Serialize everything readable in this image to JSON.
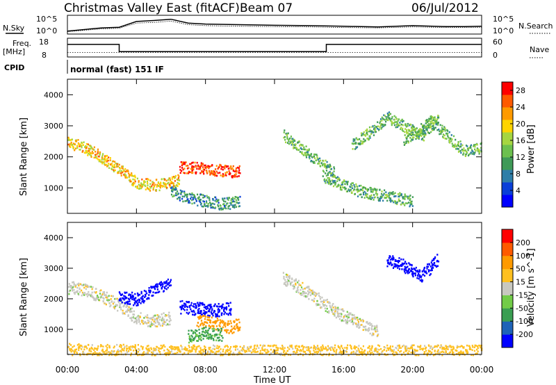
{
  "header": {
    "title": "Christmas Valley East (fitACF)",
    "beam": "Beam 07",
    "date": "06/Jul/2012"
  },
  "left_labels": {
    "nsky": "N.Sky",
    "freq_line1": "Freq.",
    "freq_line2": "[MHz]",
    "cpid": "CPID"
  },
  "right_labels": {
    "nsearch": "N.Search",
    "nave": "Nave"
  },
  "noise_axis": {
    "top": "10^5",
    "bottom": "10^0"
  },
  "freq_axis": {
    "left_top": "18",
    "left_bottom": "8",
    "right_top": "60",
    "right_bottom": "0"
  },
  "cpid_text": "normal (fast) 151 IF",
  "xlabel": "Time UT",
  "ylabel": "Slant Range [km]",
  "colors": {
    "power": [
      "#0000ff",
      "#0a3fd8",
      "#2e7ea8",
      "#3f9a58",
      "#6cc04e",
      "#a6d640",
      "#ffd400",
      "#ff9a00",
      "#ff5a00",
      "#ff0000"
    ],
    "velocity": [
      "#0000ff",
      "#1e63b8",
      "#3a9e52",
      "#72cc48",
      "#c8c8c0",
      "#ffc020",
      "#ff9a00",
      "#ff5a00",
      "#ff0000"
    ]
  },
  "chart_data": [
    {
      "type": "line",
      "name": "noise-panel",
      "ylabel": "N.Sky",
      "y2label": "N.Search",
      "yticks": [
        "10^0",
        "10^5"
      ],
      "x": [
        "00:00",
        "02:00",
        "03:00",
        "04:00",
        "05:00",
        "06:00",
        "07:00",
        "08:00",
        "10:00",
        "12:00",
        "14:00",
        "16:00",
        "18:00",
        "20:00",
        "22:00",
        "23:00",
        "24:00"
      ],
      "series": [
        {
          "name": "N.Sky",
          "values": [
            0.5,
            1.5,
            1.7,
            3.5,
            3.8,
            4.2,
            3.0,
            2.7,
            2.5,
            2.3,
            2.2,
            2.0,
            1.8,
            2.2,
            1.9,
            1.9,
            2.0
          ]
        },
        {
          "name": "N.Search",
          "values": [
            0.3,
            1.2,
            1.4,
            3.0,
            3.2,
            3.6,
            2.5,
            2.2,
            2.0,
            1.9,
            1.8,
            1.6,
            1.5,
            1.8,
            1.6,
            1.6,
            1.7
          ]
        }
      ]
    },
    {
      "type": "line",
      "name": "frequency-panel",
      "ylabel": "Freq. [MHz]",
      "y2label": "Nave",
      "ylim": [
        8,
        18
      ],
      "y2lim": [
        0,
        60
      ],
      "x": [
        "00:00",
        "03:00",
        "03:00",
        "15:00",
        "15:00",
        "24:00"
      ],
      "series": [
        {
          "name": "Freq.",
          "values": [
            15,
            15,
            10.5,
            10.5,
            15,
            15
          ]
        },
        {
          "name": "Nave",
          "values": [
            12,
            12,
            12,
            12,
            12,
            12
          ]
        }
      ]
    },
    {
      "type": "heatmap",
      "name": "power-panel",
      "xlabel": "Time UT",
      "ylabel": "Slant Range [km]",
      "colorbar_label": "Power [dB]",
      "ylim": [
        180,
        4500
      ],
      "yticks": [
        1000,
        2000,
        3000,
        4000
      ],
      "xlim": [
        "00:00",
        "24:00"
      ],
      "xticks": [
        "00:00",
        "04:00",
        "08:00",
        "12:00",
        "16:00",
        "20:00",
        "00:00"
      ],
      "colorbar_ticks": [
        4,
        8,
        12,
        16,
        20,
        24,
        28
      ],
      "colorbar_range": [
        0,
        30
      ],
      "echo_tracks": [
        {
          "t": [
            0.0,
            1.0,
            2.0,
            3.0,
            4.0,
            5.0,
            6.0,
            6.5
          ],
          "range": [
            2500,
            2300,
            2000,
            1600,
            1200,
            1100,
            1200,
            1300
          ],
          "power": 20
        },
        {
          "t": [
            6.5,
            7.5,
            8.5,
            9.5,
            10.0
          ],
          "range": [
            1700,
            1650,
            1600,
            1550,
            1600
          ],
          "power": 27
        },
        {
          "t": [
            6.0,
            7.0,
            8.0,
            9.0,
            10.0
          ],
          "range": [
            900,
            700,
            600,
            500,
            600
          ],
          "power": 9
        },
        {
          "t": [
            12.5,
            13.5,
            14.5,
            15.5
          ],
          "range": [
            2700,
            2300,
            1900,
            1500
          ],
          "power": 13
        },
        {
          "t": [
            14.8,
            16.0,
            17.0,
            18.0,
            19.0,
            20.0
          ],
          "range": [
            1400,
            1100,
            900,
            800,
            700,
            600
          ],
          "power": 12
        },
        {
          "t": [
            16.5,
            17.5,
            18.5,
            19.5,
            20.5,
            21.5
          ],
          "range": [
            2400,
            2800,
            3300,
            3000,
            2700,
            3300
          ],
          "power": 13
        },
        {
          "t": [
            19.5,
            20.5,
            21.0,
            22.0,
            23.0,
            24.0
          ],
          "range": [
            2600,
            2900,
            3200,
            2700,
            2200,
            2300
          ],
          "power": 13
        }
      ]
    },
    {
      "type": "heatmap",
      "name": "velocity-panel",
      "xlabel": "Time UT",
      "ylabel": "Slant Range [km]",
      "colorbar_label": "Velocity [m s^-1]",
      "ylim": [
        180,
        4500
      ],
      "yticks": [
        1000,
        2000,
        3000,
        4000
      ],
      "xlim": [
        "00:00",
        "24:00"
      ],
      "xticks": [
        "00:00",
        "04:00",
        "08:00",
        "12:00",
        "16:00",
        "20:00",
        "00:00"
      ],
      "colorbar_ticks": [
        200,
        100,
        50,
        15,
        -15,
        -50,
        -100,
        -200
      ],
      "echo_tracks": [
        {
          "t": [
            0.0,
            1.0,
            2.0,
            3.0,
            4.0,
            5.0,
            6.0
          ],
          "range": [
            2400,
            2300,
            2100,
            1800,
            1400,
            1300,
            1400
          ],
          "velocity": 0
        },
        {
          "t": [
            3.0,
            4.0,
            5.0,
            6.0
          ],
          "range": [
            2100,
            2000,
            2300,
            2600
          ],
          "velocity": 200
        },
        {
          "t": [
            6.5,
            7.5,
            8.5,
            9.5
          ],
          "range": [
            1750,
            1700,
            1650,
            1700
          ],
          "velocity": 200
        },
        {
          "t": [
            7.5,
            8.5,
            9.5,
            10.0
          ],
          "range": [
            1300,
            1200,
            1100,
            1200
          ],
          "velocity": -80
        },
        {
          "t": [
            7.0,
            8.0,
            9.0
          ],
          "range": [
            800,
            900,
            850
          ],
          "velocity": 40
        },
        {
          "t": [
            12.5,
            14.0,
            15.5,
            17.0,
            18.0
          ],
          "range": [
            2700,
            2200,
            1600,
            1200,
            900
          ],
          "velocity": 0
        },
        {
          "t": [
            18.5,
            19.5,
            20.5,
            21.5
          ],
          "range": [
            3300,
            3100,
            2800,
            3300
          ],
          "velocity": 220
        },
        {
          "t": [
            0.0,
            6.0,
            12.0,
            18.0,
            24.0
          ],
          "range": [
            350,
            300,
            300,
            300,
            300
          ],
          "velocity": -30
        }
      ]
    }
  ]
}
